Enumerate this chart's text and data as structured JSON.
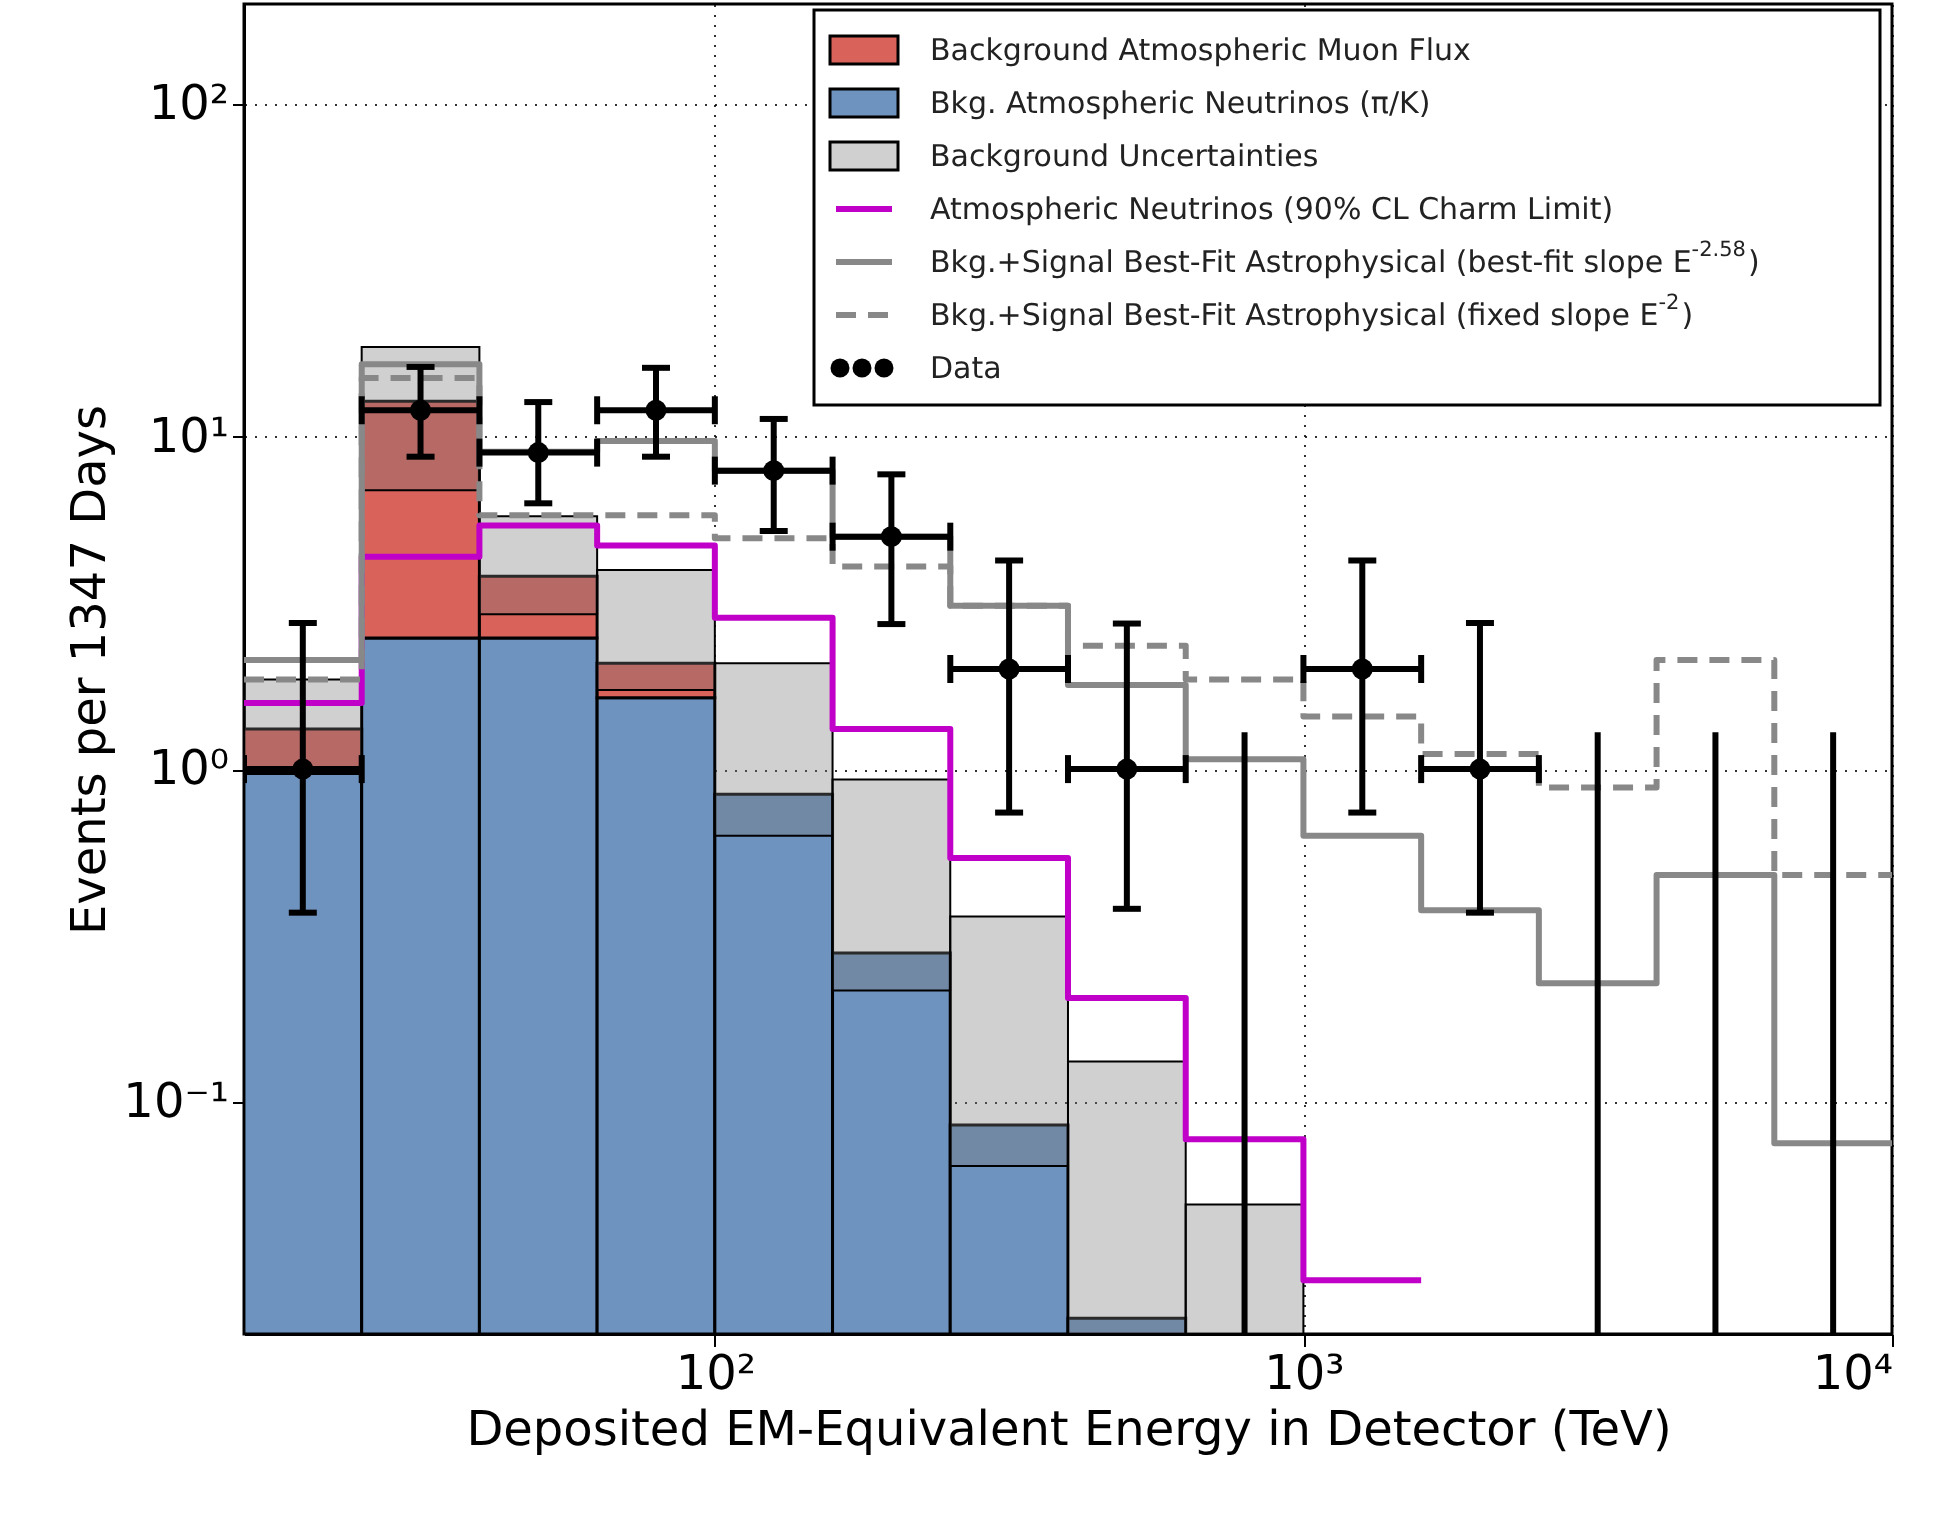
{
  "chart_data": {
    "type": "bar",
    "xlabel": "Deposited EM-Equivalent Energy in Detector (TeV)",
    "ylabel": "Events per 1347 Days",
    "x": [
      19.95,
      31.62,
      50.12,
      79.43,
      125.9,
      199.5,
      316.2,
      501.2,
      794.3
    ],
    "series": [
      {
        "name": "Bkg. Atmospheric Neutrinos (π/K)",
        "color": "#6f93bf",
        "values": [
          0.97,
          2.48,
          2.48,
          1.64,
          0.84,
          0.28,
          0.085,
          0.0223,
          null
        ]
      },
      {
        "name": "Background Atmospheric Muon Flux",
        "color": "#d9625b",
        "base": [
          0.97,
          2.48,
          2.48,
          1.64,
          null,
          null,
          null,
          null,
          null
        ],
        "values": [
          0.35,
          10.3,
          1.32,
          0.44,
          null,
          null,
          null,
          null,
          null
        ]
      },
      {
        "name": "Background Uncertainties",
        "color": "#777777",
        "base": [
          1.0,
          6.9,
          2.92,
          1.73,
          0.63,
          0.216,
          0.064,
          0.02,
          0.02
        ],
        "values": [
          0.86,
          11.7,
          2.84,
          2.24,
          1.45,
          0.714,
          0.296,
          0.112,
          0.029
        ]
      },
      {
        "name": "Atmospheric Neutrinos (90% CL Charm Limit)",
        "type": "step",
        "color": "#c000c8",
        "line_style": "solid",
        "x": [
          15.85,
          25.12,
          39.81,
          63.1,
          100,
          158.5,
          251.2,
          398.1,
          631,
          1000,
          1585
        ],
        "values": [
          1.58,
          4.35,
          5.4,
          4.7,
          2.85,
          1.32,
          0.54,
          0.205,
          0.077,
          0.029,
          0.029
        ]
      },
      {
        "name": "Bkg.+Signal Best-Fit Astrophysical (best-fit slope E$^{-2.58}$)",
        "type": "step",
        "color": "#888888",
        "line_style": "solid",
        "x": [
          15.85,
          25.12,
          39.81,
          63.1,
          100,
          158.5,
          251.2,
          398.1,
          631,
          1000,
          1585,
          2512,
          3981,
          6310,
          10000
        ],
        "values": [
          2.13,
          16.5,
          9.0,
          9.7,
          7.9,
          5.0,
          3.1,
          1.79,
          1.07,
          0.63,
          0.376,
          0.227,
          0.48,
          0.075,
          0.075
        ]
      },
      {
        "name": "Bkg.+Signal Best-Fit Astrophysical (fixed slope E$^{-2}$)",
        "type": "step",
        "color": "#888888",
        "line_style": "dashed",
        "x": [
          15.85,
          25.12,
          39.81,
          63.1,
          100,
          158.5,
          251.2,
          398.1,
          631,
          1000,
          1585,
          2512,
          3981,
          6310,
          10000
        ],
        "values": [
          1.86,
          15.0,
          5.8,
          5.8,
          4.95,
          4.07,
          3.1,
          2.35,
          1.86,
          1.44,
          1.11,
          0.88,
          2.13,
          0.48,
          0.48
        ]
      },
      {
        "name": "Data",
        "type": "scatter",
        "color": "#000000",
        "marker": "circle",
        "x": [
          19.95,
          31.62,
          50.12,
          79.43,
          125.9,
          199.5,
          316.2,
          501.2,
          1259,
          1995
        ],
        "values": [
          1.0,
          12.0,
          8.95,
          12.0,
          7.9,
          5.0,
          2.0,
          1.0,
          2.0,
          1.0
        ],
        "errors": [
          [
            0.37,
            2.75
          ],
          [
            8.7,
            16.2
          ],
          [
            6.3,
            12.7
          ],
          [
            8.7,
            16.1
          ],
          [
            5.2,
            11.3
          ],
          [
            2.73,
            7.7
          ],
          [
            0.74,
            4.24
          ],
          [
            0.38,
            2.74
          ],
          [
            0.74,
            4.24
          ],
          [
            0.37,
            2.75
          ]
        ],
        "xerrors": [
          [
            15.85,
            25.12
          ],
          [
            25.12,
            39.81
          ],
          [
            39.81,
            63.1
          ],
          [
            63.1,
            100
          ],
          [
            100,
            158.5
          ],
          [
            158.5,
            251.2
          ],
          [
            251.2,
            398.1
          ],
          [
            398.1,
            631
          ],
          [
            1000,
            1585
          ],
          [
            1585,
            2512
          ]
        ]
      },
      {
        "type": "line",
        "color": "#000000",
        "line_style": "solid",
        "x": [
          794.3,
          794.3
        ],
        "values": [
          0.02,
          1.29
        ]
      },
      {
        "type": "line",
        "color": "#000000",
        "line_style": "solid",
        "x": [
          3162,
          3162
        ],
        "values": [
          0.02,
          1.29
        ]
      },
      {
        "type": "line",
        "color": "#000000",
        "line_style": "solid",
        "x": [
          5012,
          5012
        ],
        "values": [
          0.02,
          1.29
        ]
      },
      {
        "type": "line",
        "color": "#000000",
        "line_style": "solid",
        "x": [
          7943,
          7943
        ],
        "values": [
          0.02,
          1.29
        ]
      }
    ],
    "log": "xy",
    "xlim": [
      15.85,
      10000
    ],
    "xticks": [
      {
        "value": 100,
        "label": "10²"
      },
      {
        "value": 1000,
        "label": "10³"
      },
      {
        "value": 10000,
        "label": "10⁴"
      }
    ],
    "ylim": [
      0.02,
      200
    ],
    "yticks": [
      {
        "value": 0.1,
        "label": "10⁻¹"
      },
      {
        "value": 1,
        "label": "10⁰"
      },
      {
        "value": 10,
        "label": "10¹"
      },
      {
        "value": 100,
        "label": "10²"
      }
    ],
    "grid": true,
    "legend": "top right"
  }
}
